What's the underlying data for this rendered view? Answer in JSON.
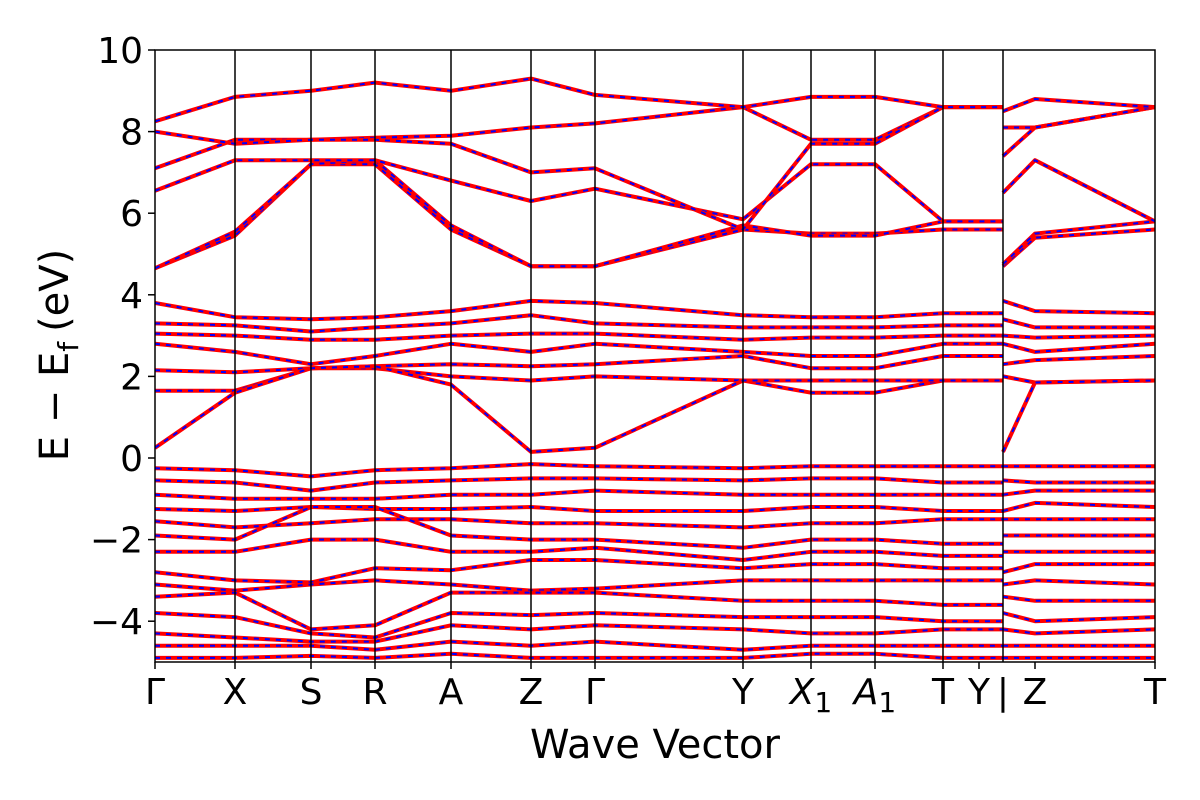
{
  "chart_data": {
    "type": "line",
    "xlabel": "Wave Vector",
    "ylabel": "E − E",
    "ylabel_sub": "f",
    "ylabel_unit": "(eV)",
    "ylim": [
      -5,
      10
    ],
    "yticks": [
      -4,
      -2,
      0,
      2,
      4,
      6,
      8,
      10
    ],
    "ytick_labels": [
      "−4",
      "−2",
      "0",
      "2",
      "4",
      "6",
      "8",
      "10"
    ],
    "xlim": [
      0,
      12.5
    ],
    "kpoints": [
      {
        "x": 0,
        "label": "Γ"
      },
      {
        "x": 1.0,
        "label": "X"
      },
      {
        "x": 1.95,
        "label": "S"
      },
      {
        "x": 2.75,
        "label": "R"
      },
      {
        "x": 3.7,
        "label": "A"
      },
      {
        "x": 4.7,
        "label": "Z"
      },
      {
        "x": 5.5,
        "label": "Γ"
      },
      {
        "x": 7.35,
        "label": "Y"
      },
      {
        "x": 8.2,
        "label": "X",
        "sub": "1"
      },
      {
        "x": 9.0,
        "label": "A",
        "sub": "1"
      },
      {
        "x": 9.85,
        "label": "T"
      },
      {
        "x": 10.3,
        "label": "Y"
      },
      {
        "x": 10.6,
        "label": "|"
      },
      {
        "x": 11.0,
        "label": "Z"
      },
      {
        "x": 12.5,
        "label": "T"
      }
    ],
    "vlines": [
      1.0,
      1.95,
      2.75,
      3.7,
      4.7,
      5.5,
      7.35,
      9.0,
      8.2,
      9.85,
      10.6
    ],
    "grid": false,
    "series": [
      {
        "color": "#ff0000",
        "overlay_color": "#0000ff",
        "style": "solid-with-dashed-overlay",
        "points_x": [
          0,
          1.0,
          1.95,
          2.75,
          3.7,
          4.7,
          5.5,
          7.35,
          8.2,
          9.0,
          9.85,
          10.6,
          10.6,
          11.0,
          12.5
        ]
      }
    ],
    "bands": [
      {
        "y": [
          4.65,
          5.45,
          7.2,
          7.2,
          5.6,
          4.7,
          4.7,
          5.6,
          5.5,
          5.5,
          5.6,
          5.6,
          4.7,
          5.4,
          5.6
        ]
      },
      {
        "y": [
          4.65,
          5.55,
          7.2,
          7.3,
          5.7,
          4.7,
          4.7,
          5.7,
          5.45,
          5.45,
          5.8,
          5.8,
          4.75,
          5.5,
          5.8
        ]
      },
      {
        "y": [
          6.55,
          7.3,
          7.3,
          7.3,
          6.8,
          6.3,
          6.6,
          5.85,
          7.2,
          7.2,
          5.8,
          5.8,
          6.5,
          7.3,
          5.8
        ]
      },
      {
        "y": [
          7.1,
          7.8,
          7.8,
          7.85,
          7.9,
          8.1,
          8.2,
          8.6,
          7.8,
          7.8,
          8.6,
          8.6,
          7.4,
          8.1,
          8.6
        ]
      },
      {
        "y": [
          8.0,
          7.7,
          7.8,
          7.8,
          7.7,
          7.0,
          7.1,
          5.6,
          7.7,
          7.7,
          8.6,
          8.6,
          8.1,
          8.1,
          8.6
        ]
      },
      {
        "y": [
          8.25,
          8.85,
          9.0,
          9.2,
          9.0,
          9.3,
          8.9,
          8.6,
          8.85,
          8.85,
          8.6,
          8.6,
          8.5,
          8.8,
          8.6
        ]
      },
      {
        "y": [
          3.8,
          3.45,
          3.4,
          3.45,
          3.6,
          3.85,
          3.8,
          3.5,
          3.45,
          3.45,
          3.55,
          3.55,
          3.85,
          3.6,
          3.55
        ]
      },
      {
        "y": [
          3.3,
          3.25,
          3.1,
          3.2,
          3.3,
          3.5,
          3.3,
          3.2,
          3.2,
          3.2,
          3.25,
          3.25,
          3.4,
          3.2,
          3.2
        ]
      },
      {
        "y": [
          3.05,
          3.0,
          2.9,
          2.9,
          3.0,
          3.05,
          3.05,
          2.9,
          2.95,
          2.95,
          3.0,
          3.0,
          3.0,
          2.95,
          3.0
        ]
      },
      {
        "y": [
          2.8,
          2.6,
          2.3,
          2.5,
          2.8,
          2.6,
          2.8,
          2.6,
          2.5,
          2.5,
          2.8,
          2.8,
          2.8,
          2.6,
          2.8
        ]
      },
      {
        "y": [
          2.15,
          2.1,
          2.2,
          2.25,
          2.3,
          2.25,
          2.3,
          2.5,
          2.2,
          2.2,
          2.5,
          2.5,
          2.3,
          2.4,
          2.5
        ]
      },
      {
        "y": [
          1.65,
          1.65,
          2.2,
          2.2,
          2.0,
          1.9,
          2.0,
          1.9,
          1.6,
          1.6,
          1.9,
          1.9,
          2.0,
          1.85,
          1.9
        ]
      },
      {
        "y": [
          0.25,
          1.6,
          2.2,
          2.25,
          1.8,
          0.15,
          0.25,
          1.9,
          1.9,
          1.9,
          1.9,
          1.9,
          0.15,
          1.85,
          1.9
        ]
      },
      {
        "y": [
          -0.25,
          -0.3,
          -0.45,
          -0.3,
          -0.25,
          -0.15,
          -0.2,
          -0.25,
          -0.2,
          -0.2,
          -0.2,
          -0.2,
          -0.2,
          -0.2,
          -0.2
        ]
      },
      {
        "y": [
          -0.55,
          -0.6,
          -0.8,
          -0.6,
          -0.55,
          -0.5,
          -0.5,
          -0.55,
          -0.5,
          -0.5,
          -0.6,
          -0.6,
          -0.55,
          -0.6,
          -0.6
        ]
      },
      {
        "y": [
          -0.9,
          -1.0,
          -1.0,
          -1.0,
          -0.9,
          -0.9,
          -0.8,
          -0.9,
          -0.9,
          -0.9,
          -0.9,
          -0.9,
          -0.9,
          -0.8,
          -0.8
        ]
      },
      {
        "y": [
          -1.25,
          -1.3,
          -1.2,
          -1.25,
          -1.25,
          -1.2,
          -1.3,
          -1.3,
          -1.2,
          -1.2,
          -1.3,
          -1.3,
          -1.3,
          -1.1,
          -1.2
        ]
      },
      {
        "y": [
          -1.55,
          -1.7,
          -1.6,
          -1.5,
          -1.5,
          -1.6,
          -1.6,
          -1.7,
          -1.6,
          -1.6,
          -1.5,
          -1.5,
          -1.5,
          -1.5,
          -1.5
        ]
      },
      {
        "y": [
          -1.9,
          -2.0,
          -1.2,
          -1.2,
          -1.9,
          -2.0,
          -2.0,
          -2.2,
          -2.0,
          -2.0,
          -2.1,
          -2.1,
          -1.9,
          -1.9,
          -1.9
        ]
      },
      {
        "y": [
          -2.3,
          -2.3,
          -2.0,
          -2.0,
          -2.3,
          -2.3,
          -2.2,
          -2.5,
          -2.3,
          -2.3,
          -2.4,
          -2.4,
          -2.3,
          -2.3,
          -2.3
        ]
      },
      {
        "y": [
          -2.8,
          -3.0,
          -3.05,
          -2.7,
          -2.75,
          -2.5,
          -2.5,
          -2.7,
          -2.6,
          -2.6,
          -2.7,
          -2.7,
          -2.8,
          -2.6,
          -2.6
        ]
      },
      {
        "y": [
          -3.1,
          -3.25,
          -3.1,
          -3.0,
          -3.1,
          -3.25,
          -3.2,
          -3.0,
          -3.0,
          -3.0,
          -3.0,
          -3.0,
          -3.1,
          -3.0,
          -3.1
        ]
      },
      {
        "y": [
          -3.4,
          -3.3,
          -4.2,
          -4.1,
          -3.3,
          -3.3,
          -3.3,
          -3.5,
          -3.5,
          -3.5,
          -3.6,
          -3.6,
          -3.4,
          -3.5,
          -3.5
        ]
      },
      {
        "y": [
          -3.8,
          -3.9,
          -4.3,
          -4.4,
          -3.8,
          -3.85,
          -3.8,
          -3.9,
          -3.9,
          -3.9,
          -4.0,
          -4.0,
          -3.8,
          -4.0,
          -3.9
        ]
      },
      {
        "y": [
          -4.3,
          -4.4,
          -4.5,
          -4.5,
          -4.1,
          -4.2,
          -4.1,
          -4.2,
          -4.3,
          -4.3,
          -4.2,
          -4.2,
          -4.2,
          -4.3,
          -4.2
        ]
      },
      {
        "y": [
          -4.6,
          -4.6,
          -4.6,
          -4.7,
          -4.5,
          -4.6,
          -4.5,
          -4.7,
          -4.6,
          -4.6,
          -4.6,
          -4.6,
          -4.6,
          -4.6,
          -4.6
        ]
      },
      {
        "y": [
          -4.9,
          -4.9,
          -4.85,
          -4.9,
          -4.8,
          -4.9,
          -4.9,
          -4.9,
          -4.8,
          -4.8,
          -4.9,
          -4.9,
          -4.9,
          -4.9,
          -4.9
        ]
      }
    ]
  }
}
